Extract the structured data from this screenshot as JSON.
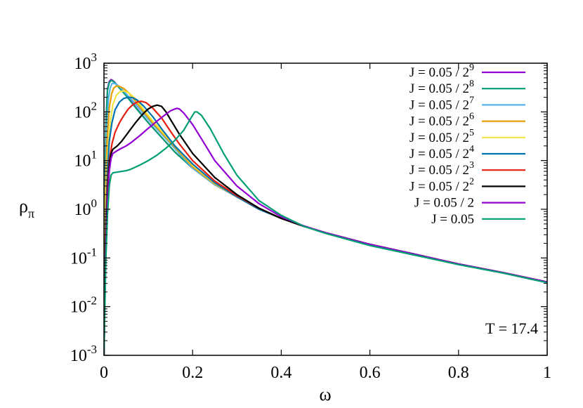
{
  "chart_data": {
    "type": "line",
    "xlabel": "ω",
    "ylabel_main": "ρ",
    "ylabel_sub": "π",
    "xlim": [
      0,
      1
    ],
    "ylim": [
      0.001,
      1000
    ],
    "ylog": true,
    "grid": false,
    "legend_position": "top-right",
    "annotation": "T = 17.4",
    "x_ticks": [
      {
        "value": 0,
        "label": "0"
      },
      {
        "value": 0.2,
        "label": "0.2"
      },
      {
        "value": 0.4,
        "label": "0.4"
      },
      {
        "value": 0.6,
        "label": "0.6"
      },
      {
        "value": 0.8,
        "label": "0.8"
      },
      {
        "value": 1,
        "label": "1"
      }
    ],
    "y_ticks": [
      {
        "value": 0.001,
        "base": "10",
        "exp": "-3"
      },
      {
        "value": 0.01,
        "base": "10",
        "exp": "-2"
      },
      {
        "value": 0.1,
        "base": "10",
        "exp": "-1"
      },
      {
        "value": 1,
        "base": "10",
        "exp": "0"
      },
      {
        "value": 10,
        "base": "10",
        "exp": "1"
      },
      {
        "value": 100,
        "base": "10",
        "exp": "2"
      },
      {
        "value": 1000,
        "base": "10",
        "exp": "3"
      }
    ],
    "series": [
      {
        "name": "J = 0.05 / 2",
        "name_sup": "9",
        "color": "#9400d3",
        "x": [
          0,
          0.002,
          0.005,
          0.008,
          0.012,
          0.016,
          0.02,
          0.025,
          0.03,
          0.04,
          0.05,
          0.06,
          0.08,
          0.1,
          0.13,
          0.16,
          0.2,
          0.25,
          0.3,
          0.35,
          0.4,
          0.45,
          0.5,
          0.6,
          0.7,
          0.8,
          0.9,
          1.0
        ],
        "y": [
          0.001,
          3,
          80,
          300,
          420,
          460,
          440,
          400,
          350,
          280,
          220,
          170,
          100,
          60,
          30,
          15,
          7,
          3.2,
          1.8,
          1.0,
          0.65,
          0.45,
          0.33,
          0.19,
          0.12,
          0.075,
          0.05,
          0.032
        ]
      },
      {
        "name": "J = 0.05 / 2",
        "name_sup": "8",
        "color": "#009e73",
        "x": [
          0,
          0.002,
          0.005,
          0.008,
          0.012,
          0.016,
          0.02,
          0.025,
          0.03,
          0.04,
          0.05,
          0.06,
          0.08,
          0.1,
          0.13,
          0.16,
          0.2,
          0.25,
          0.3,
          0.35,
          0.4,
          0.45,
          0.5,
          0.6,
          0.7,
          0.8,
          0.9,
          1.0
        ],
        "y": [
          0.001,
          3,
          70,
          280,
          400,
          440,
          430,
          395,
          345,
          275,
          215,
          165,
          98,
          60,
          30,
          15,
          7,
          3.2,
          1.8,
          1.0,
          0.65,
          0.45,
          0.33,
          0.19,
          0.12,
          0.075,
          0.05,
          0.032
        ]
      },
      {
        "name": "J = 0.05 / 2",
        "name_sup": "7",
        "color": "#56b4e9",
        "x": [
          0,
          0.003,
          0.006,
          0.01,
          0.014,
          0.018,
          0.022,
          0.028,
          0.035,
          0.045,
          0.055,
          0.07,
          0.09,
          0.11,
          0.14,
          0.17,
          0.2,
          0.25,
          0.3,
          0.35,
          0.4,
          0.45,
          0.5,
          0.6,
          0.7,
          0.8,
          0.9,
          1.0
        ],
        "y": [
          0.001,
          2,
          40,
          180,
          310,
          380,
          390,
          370,
          330,
          265,
          210,
          150,
          90,
          55,
          28,
          14,
          7,
          3.2,
          1.8,
          1.0,
          0.65,
          0.45,
          0.33,
          0.19,
          0.12,
          0.075,
          0.05,
          0.032
        ]
      },
      {
        "name": "J = 0.05 / 2",
        "name_sup": "6",
        "color": "#e69f00",
        "x": [
          0,
          0.003,
          0.007,
          0.012,
          0.017,
          0.022,
          0.028,
          0.035,
          0.045,
          0.055,
          0.07,
          0.09,
          0.11,
          0.14,
          0.17,
          0.2,
          0.25,
          0.3,
          0.35,
          0.4,
          0.45,
          0.5,
          0.6,
          0.7,
          0.8,
          0.9,
          1.0
        ],
        "y": [
          0.001,
          1.5,
          25,
          120,
          230,
          310,
          340,
          335,
          300,
          250,
          170,
          100,
          60,
          30,
          15,
          7.5,
          3.3,
          1.8,
          1.0,
          0.65,
          0.45,
          0.33,
          0.19,
          0.12,
          0.075,
          0.05,
          0.032
        ]
      },
      {
        "name": "J = 0.05 / 2",
        "name_sup": "5",
        "color": "#f0e442",
        "x": [
          0,
          0.004,
          0.008,
          0.014,
          0.02,
          0.028,
          0.036,
          0.045,
          0.055,
          0.07,
          0.09,
          0.11,
          0.14,
          0.17,
          0.2,
          0.25,
          0.3,
          0.35,
          0.4,
          0.45,
          0.5,
          0.6,
          0.7,
          0.8,
          0.9,
          1.0
        ],
        "y": [
          0.001,
          1,
          12,
          60,
          140,
          220,
          260,
          270,
          250,
          190,
          110,
          65,
          32,
          16,
          8,
          3.4,
          1.8,
          1.0,
          0.65,
          0.45,
          0.33,
          0.19,
          0.12,
          0.075,
          0.05,
          0.032
        ]
      },
      {
        "name": "J = 0.05 / 2",
        "name_sup": "4",
        "color": "#0072b2",
        "x": [
          0,
          0.004,
          0.008,
          0.012,
          0.018,
          0.025,
          0.035,
          0.045,
          0.055,
          0.065,
          0.075,
          0.09,
          0.11,
          0.13,
          0.16,
          0.2,
          0.25,
          0.3,
          0.35,
          0.4,
          0.45,
          0.5,
          0.6,
          0.7,
          0.8,
          0.9,
          1.0
        ],
        "y": [
          0.001,
          0.5,
          6,
          25,
          60,
          110,
          160,
          190,
          200,
          195,
          175,
          130,
          80,
          45,
          20,
          8.5,
          3.5,
          1.8,
          1.0,
          0.65,
          0.45,
          0.33,
          0.19,
          0.12,
          0.075,
          0.05,
          0.032
        ]
      },
      {
        "name": "J = 0.05 / 2",
        "name_sup": "3",
        "color": "#e51e10",
        "x": [
          0,
          0.004,
          0.008,
          0.012,
          0.018,
          0.025,
          0.035,
          0.045,
          0.055,
          0.065,
          0.075,
          0.085,
          0.095,
          0.11,
          0.13,
          0.15,
          0.17,
          0.2,
          0.25,
          0.3,
          0.35,
          0.4,
          0.45,
          0.5,
          0.6,
          0.7,
          0.8,
          0.9,
          1.0
        ],
        "y": [
          0.001,
          0.3,
          3,
          10,
          22,
          38,
          60,
          85,
          115,
          140,
          160,
          165,
          155,
          120,
          75,
          40,
          22,
          10,
          3.8,
          1.9,
          1.05,
          0.65,
          0.45,
          0.33,
          0.19,
          0.12,
          0.075,
          0.05,
          0.032
        ]
      },
      {
        "name": "J = 0.05 / 2",
        "name_sup": "2",
        "color": "#000000",
        "x": [
          0,
          0.004,
          0.008,
          0.012,
          0.016,
          0.02,
          0.03,
          0.04,
          0.05,
          0.06,
          0.07,
          0.08,
          0.09,
          0.1,
          0.11,
          0.12,
          0.13,
          0.14,
          0.15,
          0.17,
          0.2,
          0.25,
          0.3,
          0.35,
          0.4,
          0.45,
          0.5,
          0.6,
          0.7,
          0.8,
          0.9,
          1.0
        ],
        "y": [
          0.001,
          0.2,
          2,
          8,
          14,
          17,
          20,
          25,
          33,
          44,
          58,
          75,
          95,
          115,
          130,
          138,
          130,
          100,
          70,
          35,
          14,
          4.5,
          2.0,
          1.05,
          0.65,
          0.45,
          0.33,
          0.19,
          0.12,
          0.075,
          0.05,
          0.032
        ]
      },
      {
        "name": "J = 0.05 / 2",
        "name_sup": "",
        "color": "#9400d3",
        "x": [
          0,
          0.004,
          0.008,
          0.012,
          0.016,
          0.02,
          0.03,
          0.04,
          0.05,
          0.06,
          0.08,
          0.1,
          0.12,
          0.14,
          0.15,
          0.16,
          0.165,
          0.17,
          0.18,
          0.2,
          0.22,
          0.25,
          0.3,
          0.35,
          0.4,
          0.45,
          0.5,
          0.6,
          0.7,
          0.8,
          0.9,
          1.0
        ],
        "y": [
          0.001,
          0.12,
          1.5,
          6,
          11,
          14,
          16,
          18,
          20,
          23,
          32,
          46,
          65,
          90,
          105,
          115,
          118,
          115,
          95,
          55,
          28,
          10,
          3.0,
          1.3,
          0.7,
          0.46,
          0.33,
          0.19,
          0.12,
          0.075,
          0.05,
          0.032
        ]
      },
      {
        "name": "J = 0.05",
        "name_sup": "",
        "color": "#009e73",
        "x": [
          0,
          0.004,
          0.008,
          0.012,
          0.016,
          0.02,
          0.03,
          0.04,
          0.05,
          0.06,
          0.08,
          0.1,
          0.12,
          0.14,
          0.16,
          0.18,
          0.19,
          0.2,
          0.205,
          0.21,
          0.22,
          0.24,
          0.27,
          0.3,
          0.35,
          0.4,
          0.45,
          0.5,
          0.6,
          0.7,
          0.8,
          0.9,
          1.0
        ],
        "y": [
          0.001,
          0.08,
          0.8,
          3,
          5,
          5.6,
          5.8,
          6,
          6.2,
          6.6,
          8,
          10,
          13,
          18,
          26,
          42,
          60,
          85,
          100,
          100,
          85,
          45,
          14,
          5,
          1.5,
          0.75,
          0.45,
          0.32,
          0.18,
          0.115,
          0.073,
          0.049,
          0.031
        ]
      }
    ]
  }
}
